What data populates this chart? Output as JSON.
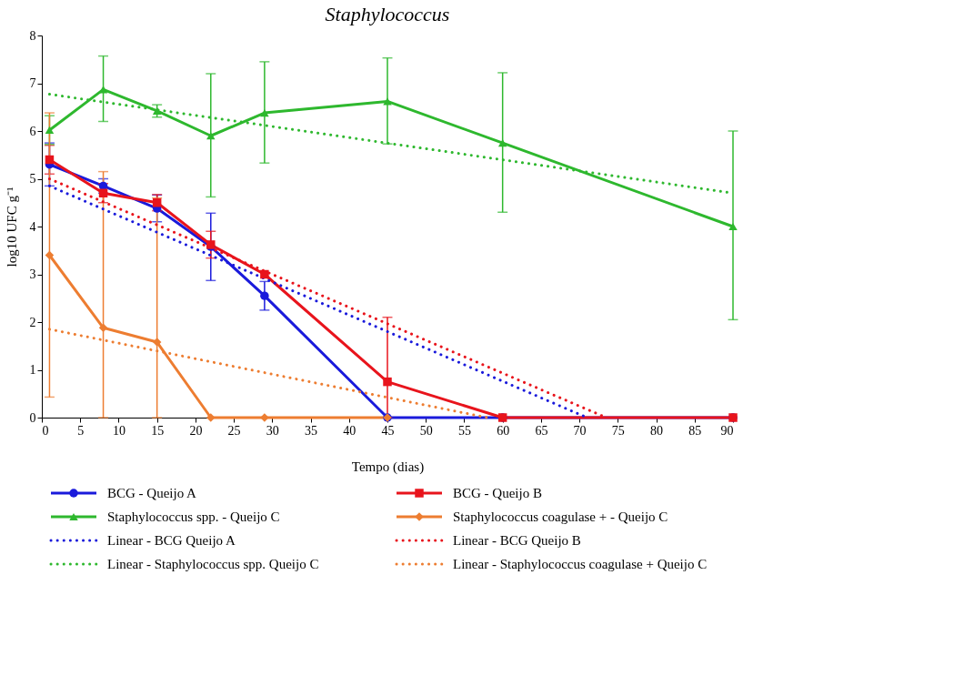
{
  "chart_data": {
    "type": "line",
    "title": "Staphylococcus",
    "xlabel": "Tempo (dias)",
    "ylabel": "log10 UFC g⁻¹",
    "x": [
      1,
      8,
      15,
      22,
      29,
      45,
      60,
      90
    ],
    "xlim": [
      0,
      90
    ],
    "xticks": [
      0,
      5,
      10,
      15,
      20,
      25,
      30,
      35,
      40,
      45,
      50,
      55,
      60,
      65,
      70,
      75,
      80,
      85,
      90
    ],
    "ylim": [
      0,
      8
    ],
    "yticks": [
      0,
      1,
      2,
      3,
      4,
      5,
      6,
      7,
      8
    ],
    "legend": "bottom",
    "series": [
      {
        "name": "BCG - Queijo A",
        "color": "#1a1adb",
        "marker": "circle",
        "line_style": "solid",
        "values": [
          5.3,
          4.85,
          4.38,
          3.58,
          2.55,
          0,
          0,
          0
        ],
        "errors": [
          0.45,
          0.15,
          0.28,
          [
            2.87,
            4.28
          ],
          0.3,
          null,
          null,
          null
        ]
      },
      {
        "name": "BCG - Queijo B",
        "color": "#e8141c",
        "marker": "square",
        "line_style": "solid",
        "values": [
          5.4,
          4.7,
          4.5,
          3.62,
          3.0,
          0.75,
          0,
          0
        ],
        "errors": [
          0.3,
          0.2,
          0.17,
          0.28,
          null,
          [
            0,
            2.1
          ],
          null,
          null
        ]
      },
      {
        "name": "Staphylococcus spp. - Queijo C",
        "color": "#2eb82e",
        "marker": "triangle",
        "line_style": "solid",
        "values": [
          6.02,
          6.87,
          6.42,
          5.9,
          6.38,
          6.62,
          5.75,
          4.0
        ],
        "errors": [
          0.3,
          [
            6.2,
            7.57
          ],
          0.13,
          [
            4.62,
            7.2
          ],
          [
            5.33,
            7.45
          ],
          [
            5.73,
            7.53
          ],
          [
            4.3,
            7.22
          ],
          [
            2.05,
            6.0
          ]
        ]
      },
      {
        "name": "Staphylococcus coagulase + - Queijo C",
        "color": "#ed7d31",
        "marker": "diamond",
        "line_style": "solid",
        "values": [
          3.4,
          1.88,
          1.58,
          0,
          0,
          0,
          null,
          null
        ],
        "errors": [
          [
            0.43,
            6.38
          ],
          [
            0,
            5.15
          ],
          [
            0,
            4.6
          ],
          null,
          null,
          null,
          null,
          null
        ]
      },
      {
        "name": "Linear - BCG Queijo A",
        "color": "#1a1adb",
        "marker": "none",
        "line_style": "dotted",
        "x": [
          1,
          71
        ],
        "values": [
          4.85,
          0
        ]
      },
      {
        "name": "Linear - BCG Queijo B",
        "color": "#e8141c",
        "marker": "none",
        "line_style": "dotted",
        "x": [
          1,
          73.5
        ],
        "values": [
          5.0,
          0
        ]
      },
      {
        "name": "Linear - Staphylococcus spp. Queijo C",
        "color": "#2eb82e",
        "marker": "none",
        "line_style": "dotted",
        "x": [
          1,
          90
        ],
        "values": [
          6.77,
          4.7
        ]
      },
      {
        "name": "Linear - Staphylococcus coagulase + Queijo C",
        "color": "#ed7d31",
        "marker": "none",
        "line_style": "dotted",
        "x": [
          1,
          58
        ],
        "values": [
          1.85,
          0
        ]
      }
    ]
  }
}
